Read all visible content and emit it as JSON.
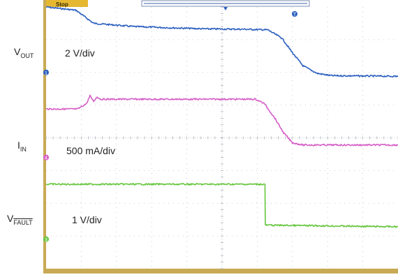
{
  "chart_data": {
    "type": "line",
    "status": "Stop",
    "grid": true,
    "channels": [
      {
        "label_main": "V",
        "label_sub": "OUT",
        "scale": "2 V/div",
        "marker": "1",
        "color": "#2b5fbf",
        "trace_div": [
          [
            0,
            8.0
          ],
          [
            0.85,
            7.9
          ],
          [
            1.35,
            7.5
          ],
          [
            2.5,
            7.4
          ],
          [
            4.5,
            7.33
          ],
          [
            5.6,
            7.32
          ],
          [
            6.3,
            7.3
          ],
          [
            6.7,
            7.05
          ],
          [
            7.0,
            6.6
          ],
          [
            7.3,
            6.2
          ],
          [
            7.7,
            5.97
          ],
          [
            8.1,
            5.9
          ],
          [
            10,
            5.88
          ]
        ]
      },
      {
        "label_main": "I",
        "label_sub": "IN",
        "scale": "500 mA/div",
        "marker": "4",
        "color": "#d65ec6",
        "trace_div": [
          [
            0,
            4.88
          ],
          [
            0.9,
            4.88
          ],
          [
            1.15,
            5.05
          ],
          [
            1.25,
            5.28
          ],
          [
            1.35,
            5.12
          ],
          [
            1.45,
            5.25
          ],
          [
            1.55,
            5.18
          ],
          [
            2.5,
            5.18
          ],
          [
            5.95,
            5.18
          ],
          [
            6.2,
            5.05
          ],
          [
            6.5,
            4.6
          ],
          [
            6.75,
            4.15
          ],
          [
            7.0,
            3.85
          ],
          [
            7.3,
            3.78
          ],
          [
            10,
            3.78
          ]
        ]
      },
      {
        "label_main": "V",
        "label_sub": "FAULT",
        "scale": "1 V/div",
        "marker": "3",
        "color": "#66c63e",
        "trace_div": [
          [
            0,
            2.58
          ],
          [
            6.22,
            2.58
          ],
          [
            6.23,
            1.33
          ],
          [
            10,
            1.28
          ]
        ]
      }
    ],
    "trigger_marker": "T"
  }
}
